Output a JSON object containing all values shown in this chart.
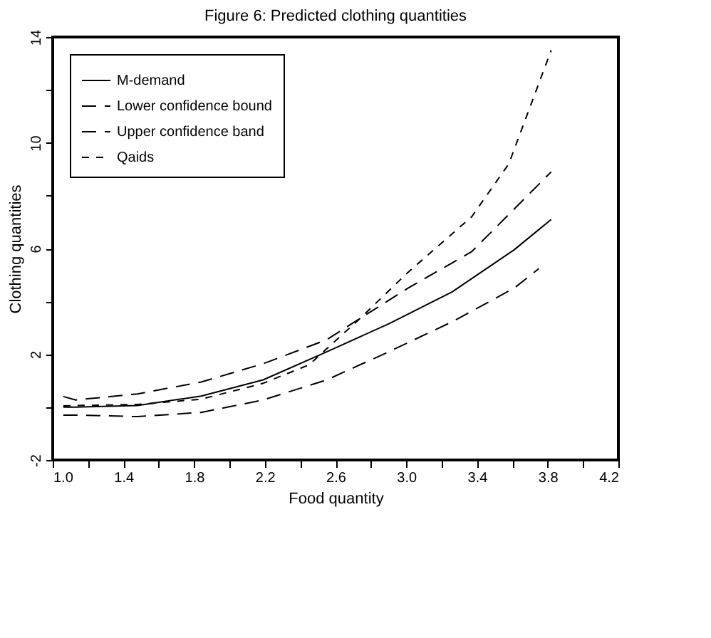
{
  "chart_data": {
    "type": "line",
    "title": "Figure 6: Predicted clothing quantities",
    "xlabel": "Food quantity",
    "ylabel": "Clothing quantities",
    "xlim": [
      1.0,
      4.2
    ],
    "ylim": [
      -2,
      14
    ],
    "xticks": [
      {
        "value": 1.0,
        "label": "1.0"
      },
      {
        "value": 1.2,
        "label": null
      },
      {
        "value": 1.4,
        "label": "1.4"
      },
      {
        "value": 1.6,
        "label": null
      },
      {
        "value": 1.8,
        "label": "1.8"
      },
      {
        "value": 2.0,
        "label": null
      },
      {
        "value": 2.2,
        "label": "2.2"
      },
      {
        "value": 2.4,
        "label": null
      },
      {
        "value": 2.6,
        "label": "2.6"
      },
      {
        "value": 2.8,
        "label": null
      },
      {
        "value": 3.0,
        "label": "3.0"
      },
      {
        "value": 3.2,
        "label": null
      },
      {
        "value": 3.4,
        "label": "3.4"
      },
      {
        "value": 3.6,
        "label": null
      },
      {
        "value": 3.8,
        "label": "3.8"
      },
      {
        "value": 4.0,
        "label": null
      },
      {
        "value": 4.2,
        "label": "4.2"
      }
    ],
    "yticks": [
      -2,
      {
        "value": 0,
        "label": null
      },
      2,
      {
        "value": 4,
        "label": null
      },
      6,
      {
        "value": 8,
        "label": null
      },
      10,
      {
        "value": 12,
        "label": null
      },
      14
    ],
    "grid": false,
    "legend": "top left",
    "marker": "none",
    "series": [
      {
        "name": "M-demand",
        "color": "#000000",
        "line_style": "solid",
        "x": [
          1.06,
          1.13,
          1.48,
          1.84,
          2.19,
          2.55,
          2.9,
          3.26,
          3.61,
          3.82
        ],
        "values": [
          0.0,
          0.0,
          0.06,
          0.42,
          1.03,
          2.09,
          3.15,
          4.36,
          5.95,
          7.1
        ]
      },
      {
        "name": "Lower confidence bound",
        "color": "#000000",
        "line_style": "dashed",
        "x": [
          1.06,
          1.13,
          1.48,
          1.84,
          2.19,
          2.55,
          2.9,
          3.26,
          3.61,
          3.75
        ],
        "values": [
          -0.3,
          -0.3,
          -0.36,
          -0.2,
          0.27,
          1.03,
          2.09,
          3.23,
          4.5,
          5.24
        ]
      },
      {
        "name": "Upper confidence band",
        "color": "#000000",
        "line_style": "dashed",
        "x": [
          1.06,
          1.13,
          1.48,
          1.84,
          2.19,
          2.55,
          2.78,
          3.01,
          3.37,
          3.82
        ],
        "values": [
          0.4,
          0.27,
          0.5,
          0.95,
          1.64,
          2.55,
          3.53,
          4.5,
          5.88,
          8.9
        ]
      },
      {
        "name": "Qaids",
        "color": "#000000",
        "line_style": "dotted",
        "x": [
          1.06,
          1.48,
          1.84,
          2.19,
          2.45,
          2.73,
          3.01,
          3.37,
          3.58,
          3.82
        ],
        "values": [
          0.05,
          0.1,
          0.3,
          0.9,
          1.6,
          3.3,
          5.1,
          7.2,
          9.2,
          13.5
        ]
      }
    ]
  }
}
